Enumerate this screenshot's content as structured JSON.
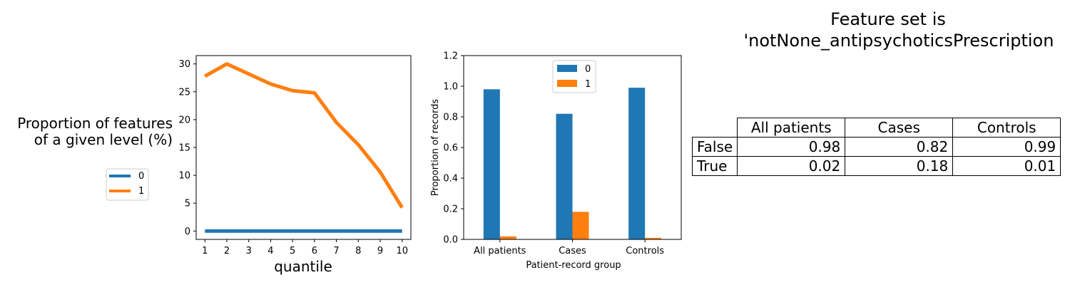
{
  "left_chart": {
    "ylabel_line1": "Proportion of features",
    "ylabel_line2": "of a given level (%)",
    "xlabel": "quantile"
  },
  "middle_chart": {
    "xlabel": "Patient-record group",
    "ylabel": "Proportion of records"
  },
  "summary_table": {
    "title_line1": "Feature set is",
    "title_line2": "'notNone_antipsychoticsPrescription",
    "columns": [
      "All patients",
      "Cases",
      "Controls"
    ],
    "rows": [
      {
        "label": "False",
        "values": [
          "0.98",
          "0.82",
          "0.99"
        ]
      },
      {
        "label": "True",
        "values": [
          "0.02",
          "0.18",
          "0.01"
        ]
      }
    ]
  },
  "chart_data": [
    {
      "type": "line",
      "title": "",
      "xlabel": "quantile",
      "ylabel": "Proportion of features of a given level (%)",
      "x": [
        1,
        2,
        3,
        4,
        5,
        6,
        7,
        8,
        9,
        10
      ],
      "xlim": [
        0.6,
        10.4
      ],
      "ylim": [
        -1.5,
        31.5
      ],
      "yticks": [
        0,
        5,
        10,
        15,
        20,
        25,
        30
      ],
      "legend_position": "outside-left",
      "grid": false,
      "series": [
        {
          "name": "0",
          "color": "#1f77b4",
          "values": [
            0,
            0,
            0,
            0,
            0,
            0,
            0,
            0,
            0,
            0
          ]
        },
        {
          "name": "1",
          "color": "#ff7f0e",
          "values": [
            27.8,
            30.0,
            28.2,
            26.4,
            25.2,
            24.8,
            19.5,
            15.5,
            10.6,
            4.2
          ]
        }
      ]
    },
    {
      "type": "bar",
      "title": "",
      "xlabel": "Patient-record group",
      "ylabel": "Proportion of records",
      "categories": [
        "All patients",
        "Cases",
        "Controls"
      ],
      "ylim": [
        0,
        1.2
      ],
      "yticks": [
        "0.0",
        "0.2",
        "0.4",
        "0.6",
        "0.8",
        "1.0",
        "1.2"
      ],
      "legend_position": "top-center",
      "grid": false,
      "series": [
        {
          "name": "0",
          "color": "#1f77b4",
          "values": [
            0.98,
            0.82,
            0.99
          ]
        },
        {
          "name": "1",
          "color": "#ff7f0e",
          "values": [
            0.02,
            0.18,
            0.01
          ]
        }
      ]
    }
  ]
}
